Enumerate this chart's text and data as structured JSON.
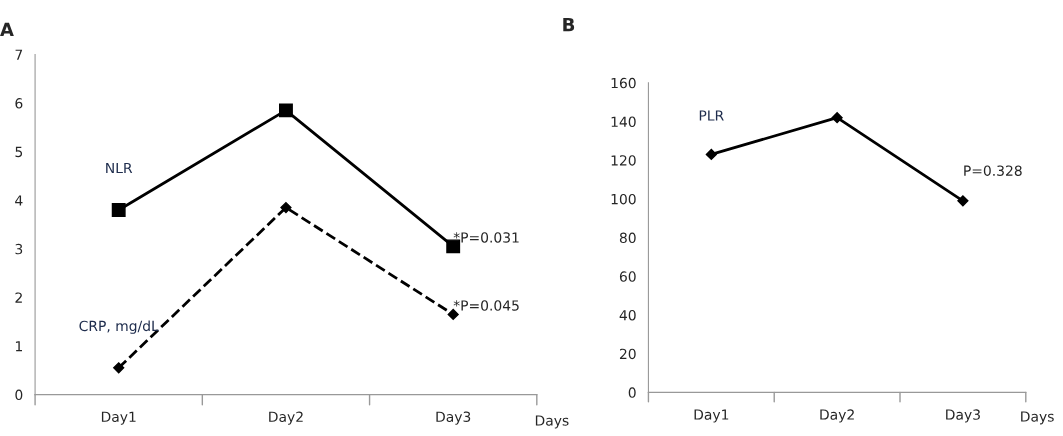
{
  "chart_data": [
    {
      "type": "line",
      "title": "A",
      "xlabel": "Days",
      "categories": [
        "Day1",
        "Day2",
        "Day3"
      ],
      "ylim": [
        0,
        7
      ],
      "yticks": [
        0,
        1,
        2,
        3,
        4,
        5,
        6,
        7
      ],
      "grid": false,
      "legend": false,
      "series": [
        {
          "name": "NLR",
          "color": "#000000",
          "values": [
            3.8,
            5.85,
            3.05
          ],
          "marker": "square",
          "line_style": "solid"
        },
        {
          "name": "CRP, mg/dL",
          "color": "#000000",
          "values": [
            0.55,
            3.85,
            1.65
          ],
          "marker": "diamond",
          "line_style": "dashed"
        }
      ],
      "annotations": [
        {
          "text": "*P=0.031",
          "x": "Day3",
          "y": 3.05
        },
        {
          "text": "*P=0.045",
          "x": "Day3",
          "y": 1.65
        }
      ]
    },
    {
      "type": "line",
      "title": "B",
      "xlabel": "Days",
      "categories": [
        "Day1",
        "Day2",
        "Day3"
      ],
      "ylim": [
        0,
        160
      ],
      "yticks": [
        0,
        20,
        40,
        60,
        80,
        100,
        120,
        140,
        160
      ],
      "grid": false,
      "legend": false,
      "series": [
        {
          "name": "PLR",
          "color": "#000000",
          "values": [
            123,
            142,
            99
          ],
          "marker": "diamond",
          "line_style": "solid"
        }
      ],
      "annotations": [
        {
          "text": "P=0.328",
          "x": "Day3",
          "y": 99
        }
      ]
    }
  ]
}
